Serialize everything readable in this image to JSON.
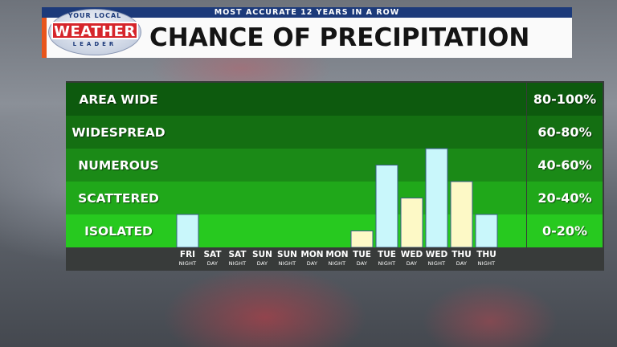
{
  "header": {
    "tagline": "MOST ACCURATE 12 YEARS IN A ROW",
    "title": "CHANCE OF PRECIPITATION",
    "logo": {
      "top": "YOUR LOCAL",
      "main": "WEATHER",
      "bottom": "LEADER"
    }
  },
  "colors": {
    "night_bar": "#c9f7fb",
    "day_bar": "#fdf9c6",
    "bands": [
      "#0d5a0e",
      "#146f12",
      "#1b8a17",
      "#20a81a",
      "#27c91f"
    ],
    "brand_blue": "#1c3a7a",
    "brand_red": "#d6252b",
    "accent_orange": "#e8551b"
  },
  "chart_data": {
    "type": "bar",
    "title": "CHANCE OF PRECIPITATION",
    "ylim": [
      0,
      100
    ],
    "bands": [
      {
        "label": "AREA WIDE",
        "range": "80-100%"
      },
      {
        "label": "WIDESPREAD",
        "range": "60-80%"
      },
      {
        "label": "NUMEROUS",
        "range": "40-60%"
      },
      {
        "label": "SCATTERED",
        "range": "20-40%"
      },
      {
        "label": "ISOLATED",
        "range": "0-20%"
      }
    ],
    "periods": [
      {
        "day": "FRI",
        "part": "NIGHT",
        "value": 20
      },
      {
        "day": "SAT",
        "part": "DAY",
        "value": 0
      },
      {
        "day": "SAT",
        "part": "NIGHT",
        "value": 0
      },
      {
        "day": "SUN",
        "part": "DAY",
        "value": 0
      },
      {
        "day": "SUN",
        "part": "NIGHT",
        "value": 0
      },
      {
        "day": "MON",
        "part": "DAY",
        "value": 0
      },
      {
        "day": "MON",
        "part": "NIGHT",
        "value": 0
      },
      {
        "day": "TUE",
        "part": "DAY",
        "value": 10
      },
      {
        "day": "TUE",
        "part": "NIGHT",
        "value": 50
      },
      {
        "day": "WED",
        "part": "DAY",
        "value": 30
      },
      {
        "day": "WED",
        "part": "NIGHT",
        "value": 60
      },
      {
        "day": "THU",
        "part": "DAY",
        "value": 40
      },
      {
        "day": "THU",
        "part": "NIGHT",
        "value": 20
      }
    ]
  }
}
